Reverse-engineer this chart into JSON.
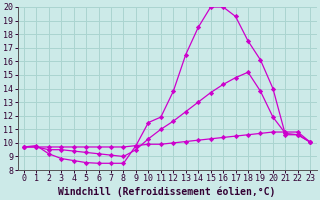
{
  "xlabel": "Windchill (Refroidissement éolien,°C)",
  "xlim": [
    -0.5,
    23.5
  ],
  "ylim": [
    8,
    20
  ],
  "xticks": [
    0,
    1,
    2,
    3,
    4,
    5,
    6,
    7,
    8,
    9,
    10,
    11,
    12,
    13,
    14,
    15,
    16,
    17,
    18,
    19,
    20,
    21,
    22,
    23
  ],
  "yticks": [
    8,
    9,
    10,
    11,
    12,
    13,
    14,
    15,
    16,
    17,
    18,
    19,
    20
  ],
  "background_color": "#cceae8",
  "grid_color": "#aad4d0",
  "curve1_x": [
    0,
    1,
    2,
    3,
    4,
    5,
    6,
    7,
    8,
    9,
    10,
    11,
    12,
    13,
    14,
    15,
    16,
    17,
    18,
    19,
    20,
    21,
    22,
    23
  ],
  "curve1_y": [
    9.7,
    9.8,
    9.2,
    8.85,
    8.7,
    8.55,
    8.5,
    8.5,
    8.5,
    9.8,
    11.5,
    11.9,
    13.8,
    16.5,
    18.5,
    20.0,
    20.0,
    19.3,
    17.5,
    16.1,
    14.0,
    10.6,
    10.6,
    10.05
  ],
  "curve2_x": [
    0,
    1,
    2,
    3,
    4,
    5,
    6,
    7,
    8,
    9,
    10,
    11,
    12,
    13,
    14,
    15,
    16,
    17,
    18,
    19,
    20,
    21,
    22,
    23
  ],
  "curve2_y": [
    9.7,
    9.7,
    9.5,
    9.5,
    9.4,
    9.3,
    9.2,
    9.1,
    9.0,
    9.5,
    10.3,
    11.0,
    11.6,
    12.3,
    13.0,
    13.7,
    14.3,
    14.8,
    15.2,
    13.8,
    11.9,
    10.7,
    10.6,
    10.05
  ],
  "curve3_x": [
    0,
    1,
    2,
    3,
    4,
    5,
    6,
    7,
    8,
    9,
    10,
    11,
    12,
    13,
    14,
    15,
    16,
    17,
    18,
    19,
    20,
    21,
    22,
    23
  ],
  "curve3_y": [
    9.7,
    9.7,
    9.7,
    9.7,
    9.7,
    9.7,
    9.7,
    9.7,
    9.7,
    9.8,
    9.9,
    9.9,
    10.0,
    10.1,
    10.2,
    10.3,
    10.4,
    10.5,
    10.6,
    10.7,
    10.8,
    10.8,
    10.8,
    10.05
  ],
  "line_color": "#cc00cc",
  "tick_fontsize": 6,
  "label_fontsize": 7
}
